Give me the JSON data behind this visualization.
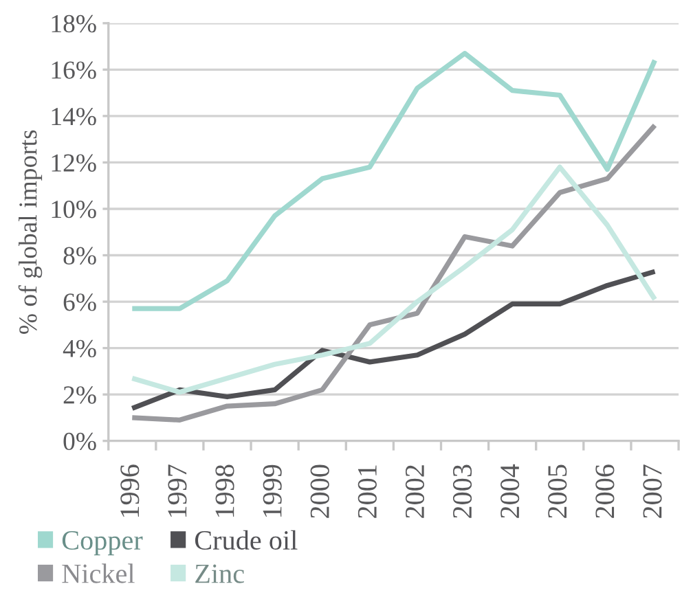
{
  "chart_data": {
    "type": "line",
    "ylabel": "% of global imports",
    "categories": [
      "1996",
      "1997",
      "1998",
      "1999",
      "2000",
      "2001",
      "2002",
      "2003",
      "2004",
      "2005",
      "2006",
      "2007"
    ],
    "ylim": [
      0,
      18
    ],
    "yticks": [
      {
        "value": 0,
        "label": "0%"
      },
      {
        "value": 2,
        "label": "2%"
      },
      {
        "value": 4,
        "label": "4%"
      },
      {
        "value": 6,
        "label": "6%"
      },
      {
        "value": 8,
        "label": "8%"
      },
      {
        "value": 10,
        "label": "10%"
      },
      {
        "value": 12,
        "label": "12%"
      },
      {
        "value": 14,
        "label": "14%"
      },
      {
        "value": 16,
        "label": "16%"
      },
      {
        "value": 18,
        "label": "18%"
      }
    ],
    "grid": "y",
    "legend": "bottom",
    "line_style": "solid",
    "series": [
      {
        "name": "Copper",
        "color": "#9fd8cf",
        "values": [
          5.7,
          5.7,
          6.9,
          9.7,
          11.3,
          11.8,
          15.2,
          16.7,
          15.1,
          14.9,
          11.7,
          16.4
        ]
      },
      {
        "name": "Crude oil",
        "color": "#505054",
        "values": [
          1.4,
          2.2,
          1.9,
          2.2,
          3.9,
          3.4,
          3.7,
          4.6,
          5.9,
          5.9,
          6.7,
          7.3
        ]
      },
      {
        "name": "Nickel",
        "color": "#9a9a9e",
        "values": [
          1.0,
          0.9,
          1.5,
          1.6,
          2.2,
          5.0,
          5.5,
          8.8,
          8.4,
          10.7,
          11.3,
          13.6
        ]
      },
      {
        "name": "Zinc",
        "color": "#c5e8e1",
        "values": [
          2.7,
          2.1,
          2.7,
          3.3,
          3.7,
          4.2,
          6.0,
          7.5,
          9.1,
          11.8,
          9.3,
          6.1
        ]
      }
    ]
  }
}
